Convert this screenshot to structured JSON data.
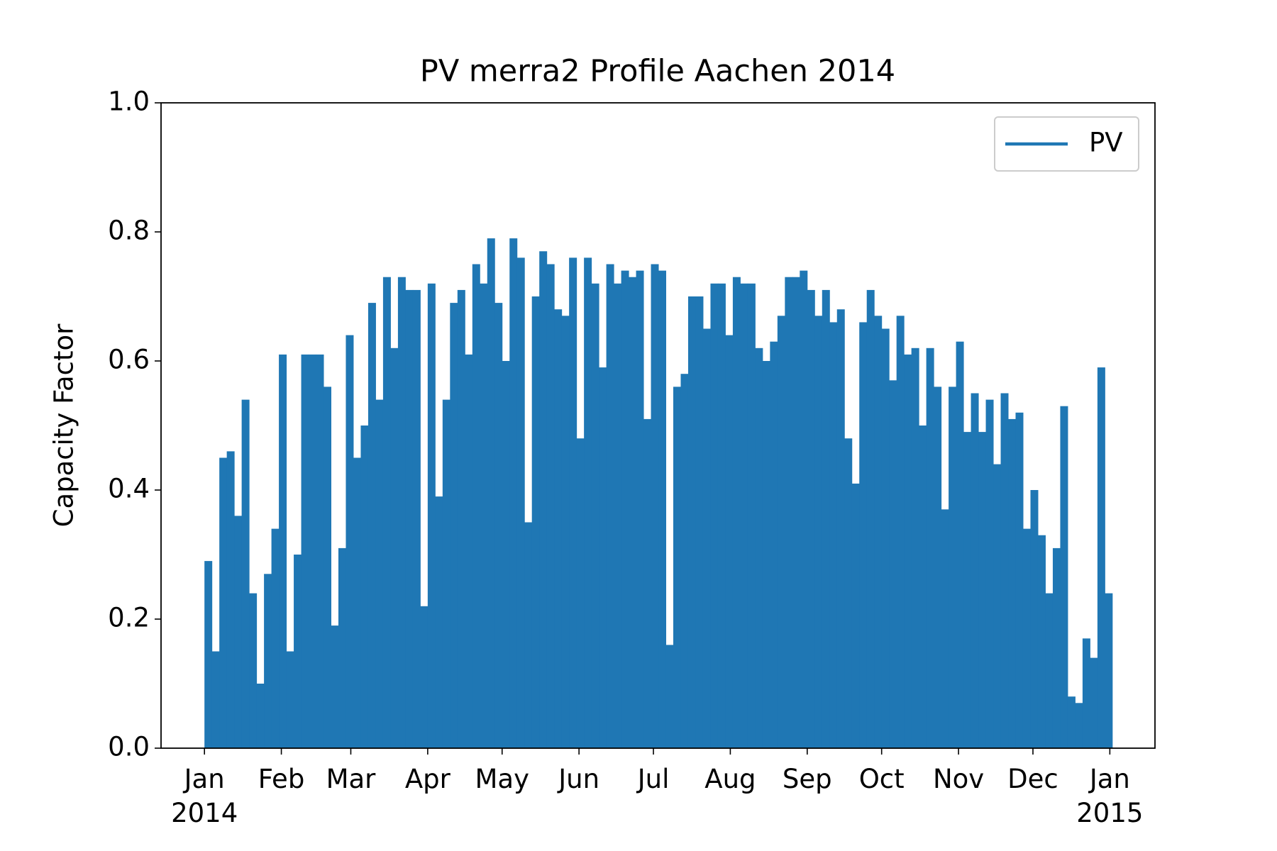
{
  "chart_data": {
    "type": "bar",
    "title": "PV merra2 Profile Aachen 2014",
    "ylabel": "Capacity Factor",
    "xlim": [
      -17.5,
      383.2
    ],
    "ylim": [
      0,
      1
    ],
    "xticks": [
      {
        "value": 0,
        "label": "Jan\n2014"
      },
      {
        "value": 31,
        "label": "Feb"
      },
      {
        "value": 59,
        "label": "Mar"
      },
      {
        "value": 90,
        "label": "Apr"
      },
      {
        "value": 120,
        "label": "May"
      },
      {
        "value": 151,
        "label": "Jun"
      },
      {
        "value": 181,
        "label": "Jul"
      },
      {
        "value": 212,
        "label": "Aug"
      },
      {
        "value": 243,
        "label": "Sep"
      },
      {
        "value": 273,
        "label": "Oct"
      },
      {
        "value": 304,
        "label": "Nov"
      },
      {
        "value": 334,
        "label": "Dec"
      },
      {
        "value": 365,
        "label": "Jan\n2015"
      }
    ],
    "yticks": [
      {
        "value": 0,
        "label": "0.0"
      },
      0.2,
      0.4,
      0.6,
      0.8,
      {
        "value": 1,
        "label": "1.0"
      }
    ],
    "legend": "upper right",
    "x": [
      0,
      3,
      6,
      9,
      12,
      15,
      18,
      21,
      24,
      27,
      30,
      33,
      36,
      39,
      42,
      45,
      48,
      51,
      54,
      57,
      60,
      63,
      66,
      69,
      72,
      75,
      78,
      81,
      84,
      87,
      90,
      93,
      96,
      99,
      102,
      105,
      108,
      111,
      114,
      117,
      120,
      123,
      126,
      129,
      132,
      135,
      138,
      141,
      144,
      147,
      150,
      153,
      156,
      159,
      162,
      165,
      168,
      171,
      174,
      177,
      180,
      183,
      186,
      189,
      192,
      195,
      198,
      201,
      204,
      207,
      210,
      213,
      216,
      219,
      222,
      225,
      228,
      231,
      234,
      237,
      240,
      243,
      246,
      249,
      252,
      255,
      258,
      261,
      264,
      267,
      270,
      273,
      276,
      279,
      282,
      285,
      288,
      291,
      294,
      297,
      300,
      303,
      306,
      309,
      312,
      315,
      318,
      321,
      324,
      327,
      330,
      333,
      336,
      339,
      342,
      345,
      348,
      351,
      354,
      357,
      360,
      363
    ],
    "series": [
      {
        "name": "PV",
        "color": "#1f77b4",
        "values": [
          0.29,
          0.15,
          0.45,
          0.46,
          0.36,
          0.54,
          0.24,
          0.1,
          0.27,
          0.34,
          0.61,
          0.15,
          0.3,
          0.61,
          0.61,
          0.61,
          0.56,
          0.19,
          0.31,
          0.64,
          0.45,
          0.5,
          0.69,
          0.54,
          0.73,
          0.62,
          0.73,
          0.71,
          0.71,
          0.22,
          0.72,
          0.39,
          0.54,
          0.69,
          0.71,
          0.61,
          0.75,
          0.72,
          0.79,
          0.69,
          0.6,
          0.79,
          0.76,
          0.35,
          0.7,
          0.77,
          0.75,
          0.68,
          0.67,
          0.76,
          0.48,
          0.76,
          0.72,
          0.59,
          0.75,
          0.72,
          0.74,
          0.73,
          0.74,
          0.51,
          0.75,
          0.74,
          0.16,
          0.56,
          0.58,
          0.7,
          0.7,
          0.65,
          0.72,
          0.72,
          0.64,
          0.73,
          0.72,
          0.72,
          0.62,
          0.6,
          0.63,
          0.67,
          0.73,
          0.73,
          0.74,
          0.71,
          0.67,
          0.71,
          0.66,
          0.68,
          0.48,
          0.41,
          0.66,
          0.71,
          0.67,
          0.65,
          0.57,
          0.67,
          0.61,
          0.62,
          0.5,
          0.62,
          0.56,
          0.37,
          0.56,
          0.63,
          0.49,
          0.55,
          0.49,
          0.54,
          0.44,
          0.55,
          0.51,
          0.52,
          0.34,
          0.4,
          0.33,
          0.24,
          0.31,
          0.53,
          0.08,
          0.07,
          0.17,
          0.14,
          0.59,
          0.24
        ]
      }
    ]
  }
}
